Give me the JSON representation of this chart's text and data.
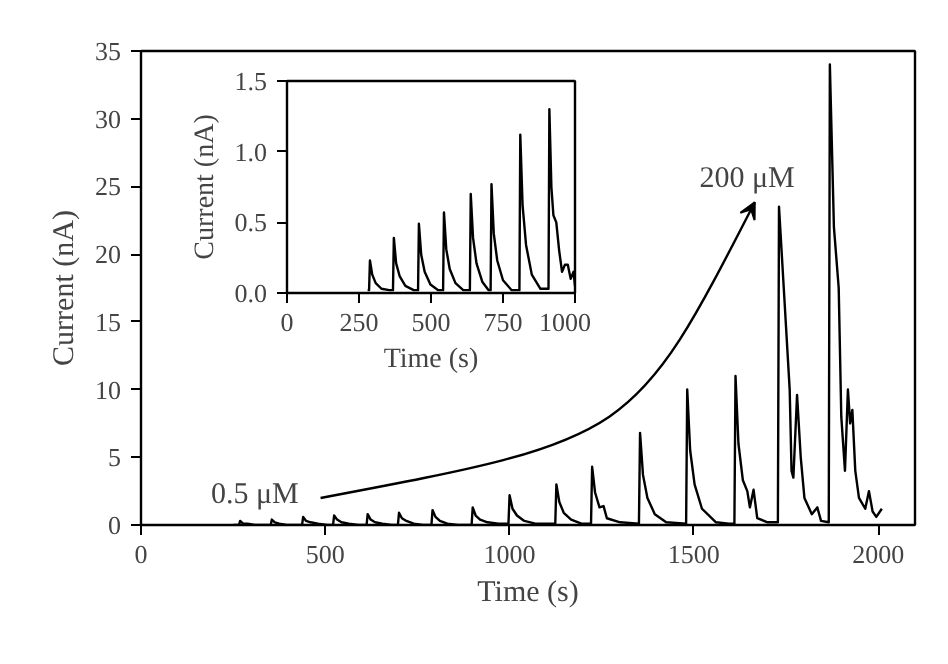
{
  "chart_data": [
    {
      "type": "line",
      "xlabel": "Time (s)",
      "ylabel": "Current (nA)",
      "xlim": [
        0,
        2100
      ],
      "ylim": [
        0,
        35
      ],
      "xticks": [
        0,
        500,
        1000,
        1500,
        2000
      ],
      "yticks": [
        0,
        5,
        10,
        15,
        20,
        25,
        30,
        35
      ],
      "grid": false,
      "line_style": "solid",
      "marker": "none",
      "x": [
        250,
        266,
        269,
        277,
        289,
        309,
        352,
        355,
        363,
        375,
        395,
        420,
        437,
        440,
        448,
        460,
        480,
        505,
        521,
        524,
        532,
        544,
        564,
        590,
        612,
        615,
        623,
        635,
        655,
        680,
        697,
        700,
        708,
        720,
        740,
        765,
        788,
        791,
        799,
        811,
        831,
        860,
        897,
        900,
        908,
        920,
        940,
        970,
        997,
        1000,
        1008,
        1020,
        1040,
        1070,
        1124,
        1127,
        1135,
        1147,
        1167,
        1195,
        1221,
        1224,
        1232,
        1244,
        1255,
        1264,
        1300,
        1351,
        1354,
        1362,
        1374,
        1394,
        1425,
        1479,
        1482,
        1490,
        1502,
        1522,
        1560,
        1595,
        1610,
        1613,
        1621,
        1633,
        1645,
        1652,
        1662,
        1672,
        1700,
        1728,
        1731,
        1745,
        1760,
        1765,
        1770,
        1780,
        1790,
        1800,
        1820,
        1835,
        1845,
        1866,
        1869,
        1880,
        1893,
        1900,
        1910,
        1918,
        1924,
        1930,
        1938,
        1948,
        1965,
        1975,
        1985,
        1995,
        2010
      ],
      "series": [
        {
          "color": "#000000",
          "values": [
            0,
            0,
            0.3,
            0.1,
            0.1,
            0,
            0,
            0.4,
            0.2,
            0.1,
            0,
            0,
            0,
            0.6,
            0.3,
            0.2,
            0.1,
            0,
            0,
            0.7,
            0.4,
            0.2,
            0.1,
            0,
            0,
            0.8,
            0.4,
            0.2,
            0.1,
            0,
            0,
            0.9,
            0.5,
            0.3,
            0.1,
            0,
            0,
            1.1,
            0.6,
            0.3,
            0.1,
            0,
            0,
            1.3,
            0.7,
            0.4,
            0.2,
            0.1,
            0.1,
            2.2,
            1.2,
            0.7,
            0.3,
            0.1,
            0.1,
            3.0,
            1.7,
            0.9,
            0.4,
            0.1,
            0.1,
            4.3,
            2.4,
            1.3,
            1.4,
            0.5,
            0.2,
            0.1,
            6.8,
            3.7,
            2.0,
            0.8,
            0.2,
            0.1,
            10.0,
            5.5,
            3.0,
            1.2,
            0.2,
            0.1,
            0.1,
            11.0,
            6.0,
            3.3,
            2.5,
            1.3,
            2.6,
            0.5,
            0.2,
            0.2,
            23.5,
            17,
            10.0,
            4.0,
            3.5,
            9.6,
            5.0,
            2.0,
            0.8,
            1.3,
            0.3,
            0.2,
            34.0,
            22,
            17.5,
            8,
            4.0,
            10.0,
            7.5,
            8.5,
            4,
            2.0,
            1.2,
            2.5,
            1.0,
            0.6,
            1.2
          ]
        }
      ],
      "annotations": [
        "0.5 μM",
        "200 μM"
      ]
    },
    {
      "type": "line",
      "xlabel": "Time (s)",
      "ylabel": "Current (nA)",
      "xlim": [
        0,
        1000
      ],
      "ylim": [
        0,
        1.5
      ],
      "xticks": [
        0,
        250,
        500,
        750,
        1000
      ],
      "yticks": [
        {
          "value": 0,
          "label": "0.0"
        },
        0.5,
        {
          "value": 1,
          "label": "1.0"
        },
        1.5
      ],
      "grid": false,
      "line_style": "solid",
      "marker": "none",
      "x": [
        280,
        285,
        288,
        296,
        308,
        328,
        355,
        368,
        371,
        379,
        391,
        411,
        440,
        455,
        458,
        466,
        478,
        498,
        525,
        542,
        545,
        553,
        565,
        585,
        612,
        635,
        638,
        646,
        658,
        678,
        700,
        707,
        710,
        718,
        730,
        750,
        780,
        807,
        810,
        818,
        830,
        850,
        880,
        908,
        911,
        918,
        925,
        935,
        945,
        955,
        965,
        975,
        985,
        995,
        1000
      ],
      "series": [
        {
          "color": "#000000",
          "values": [
            0.02,
            0.02,
            0.23,
            0.13,
            0.07,
            0.03,
            0.02,
            0.02,
            0.39,
            0.21,
            0.12,
            0.05,
            0.02,
            0.02,
            0.49,
            0.27,
            0.15,
            0.06,
            0.02,
            0.02,
            0.57,
            0.31,
            0.17,
            0.07,
            0.02,
            0.02,
            0.7,
            0.39,
            0.21,
            0.08,
            0.02,
            0.02,
            0.77,
            0.42,
            0.23,
            0.09,
            0.02,
            0.02,
            1.12,
            0.62,
            0.34,
            0.13,
            0.03,
            0.03,
            1.3,
            0.75,
            0.55,
            0.5,
            0.3,
            0.15,
            0.2,
            0.2,
            0.1,
            0.15,
            0.05
          ]
        }
      ]
    }
  ]
}
